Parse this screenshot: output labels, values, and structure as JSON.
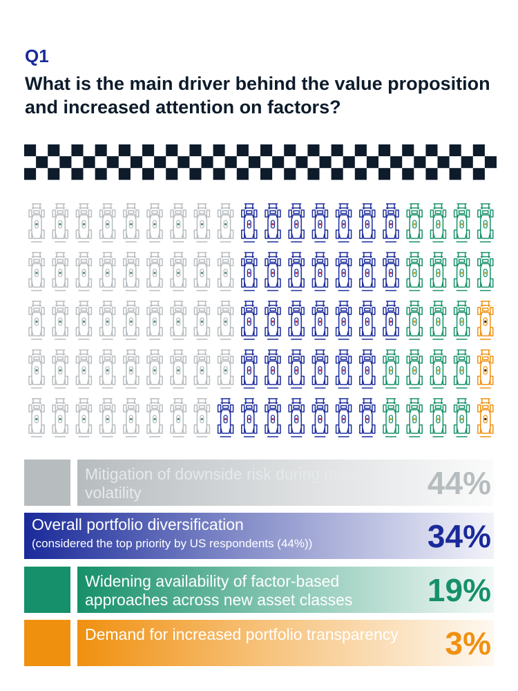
{
  "header": {
    "question_label": "Q1",
    "question": "What is the main driver behind the value proposition and increased attention on factors?"
  },
  "colors": {
    "grey": "#b7bcbf",
    "navy": "#1a2a9a",
    "green": "#16906a",
    "orange": "#f0900f",
    "dark": "#0d1b2a"
  },
  "icons": {
    "unit": "race-car-icon",
    "decoration": "checkered-flag-band"
  },
  "chart_data": {
    "type": "waffle",
    "unit_icon": "race-car-icon",
    "total_units": 100,
    "grid": {
      "rows": 5,
      "columns": 20,
      "fill_order": "column-major, left to right, top to bottom"
    },
    "series": [
      {
        "label": "Mitigation of downside risk during market volatility",
        "value": 44,
        "value_label": "44%",
        "color": "#b7bcbf"
      },
      {
        "label": "Overall portfolio diversification",
        "note": "(considered the top priority by US respondents (44%))",
        "value": 34,
        "value_label": "34%",
        "color": "#1a2a9a"
      },
      {
        "label": "Widening availability of factor-based approaches across new asset classes",
        "value": 19,
        "value_label": "19%",
        "color": "#16906a"
      },
      {
        "label": "Demand for increased portfolio transparency",
        "value": 3,
        "value_label": "3%",
        "color": "#f0900f"
      }
    ]
  },
  "legend": [
    {
      "text": "Mitigation of downside risk during market volatility",
      "pct": "44%"
    },
    {
      "text": "Overall portfolio diversification",
      "sub": "(considered the top priority by US respondents (44%))",
      "pct": "34%"
    },
    {
      "text": "Widening availability of factor-based approaches across new asset classes",
      "pct": "19%"
    },
    {
      "text": "Demand for increased portfolio transparency",
      "pct": "3%"
    }
  ]
}
